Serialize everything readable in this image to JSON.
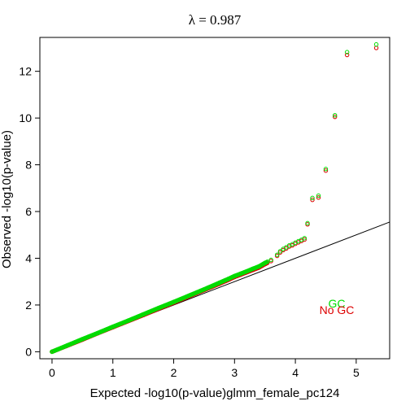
{
  "chart_data": {
    "type": "scatter",
    "title": "λ = 0.987",
    "xlabel": "Expected -log10(p-value)glmm_female_pc124",
    "ylabel": "Observed -log10(p-value)",
    "xlim": [
      -0.2,
      5.55
    ],
    "ylim": [
      -0.3,
      13.45
    ],
    "x_ticks": [
      "0",
      "1",
      "2",
      "3",
      "4",
      "5"
    ],
    "y_ticks": [
      "0",
      "2",
      "4",
      "6",
      "8",
      "10",
      "12"
    ],
    "grid": false,
    "reference_line": {
      "slope": 1,
      "intercept": 0
    },
    "legend": {
      "position": "bottom-right",
      "entries": [
        {
          "label": "GC",
          "color": "#00dd00"
        },
        {
          "label": "No GC",
          "color": "#dd0000"
        }
      ]
    },
    "series": [
      {
        "name": "No GC",
        "color": "#dd0000",
        "x": [
          0.0,
          0.25,
          0.5,
          0.75,
          1.0,
          1.25,
          1.5,
          1.75,
          2.0,
          2.25,
          2.5,
          2.75,
          2.9,
          3.0,
          3.1,
          3.2,
          3.3,
          3.4,
          3.5,
          3.6,
          3.7,
          3.75,
          3.8,
          3.85,
          3.9,
          3.95,
          4.0,
          4.05,
          4.1,
          4.15,
          4.2,
          4.28,
          4.38,
          4.5,
          4.65,
          4.85,
          5.33
        ],
        "y": [
          0.0,
          0.26,
          0.52,
          0.79,
          1.05,
          1.31,
          1.57,
          1.84,
          2.1,
          2.37,
          2.64,
          2.91,
          3.08,
          3.2,
          3.3,
          3.4,
          3.5,
          3.6,
          3.75,
          3.88,
          4.1,
          4.25,
          4.35,
          4.42,
          4.5,
          4.55,
          4.62,
          4.68,
          4.74,
          4.8,
          5.45,
          6.5,
          6.6,
          7.75,
          10.05,
          12.7,
          13.0
        ]
      },
      {
        "name": "GC",
        "color": "#00dd00",
        "x": [
          0.0,
          0.25,
          0.5,
          0.75,
          1.0,
          1.25,
          1.5,
          1.75,
          2.0,
          2.25,
          2.5,
          2.75,
          2.9,
          3.0,
          3.1,
          3.2,
          3.3,
          3.4,
          3.5,
          3.6,
          3.7,
          3.75,
          3.8,
          3.85,
          3.9,
          3.95,
          4.0,
          4.05,
          4.1,
          4.15,
          4.2,
          4.28,
          4.38,
          4.5,
          4.65,
          4.85,
          5.33
        ],
        "y": [
          0.0,
          0.27,
          0.54,
          0.8,
          1.07,
          1.33,
          1.6,
          1.87,
          2.13,
          2.4,
          2.67,
          2.95,
          3.12,
          3.24,
          3.34,
          3.44,
          3.55,
          3.65,
          3.8,
          3.93,
          4.15,
          4.3,
          4.4,
          4.47,
          4.55,
          4.6,
          4.67,
          4.73,
          4.79,
          4.86,
          5.5,
          6.58,
          6.68,
          7.82,
          10.12,
          12.82,
          13.15
        ]
      }
    ]
  }
}
